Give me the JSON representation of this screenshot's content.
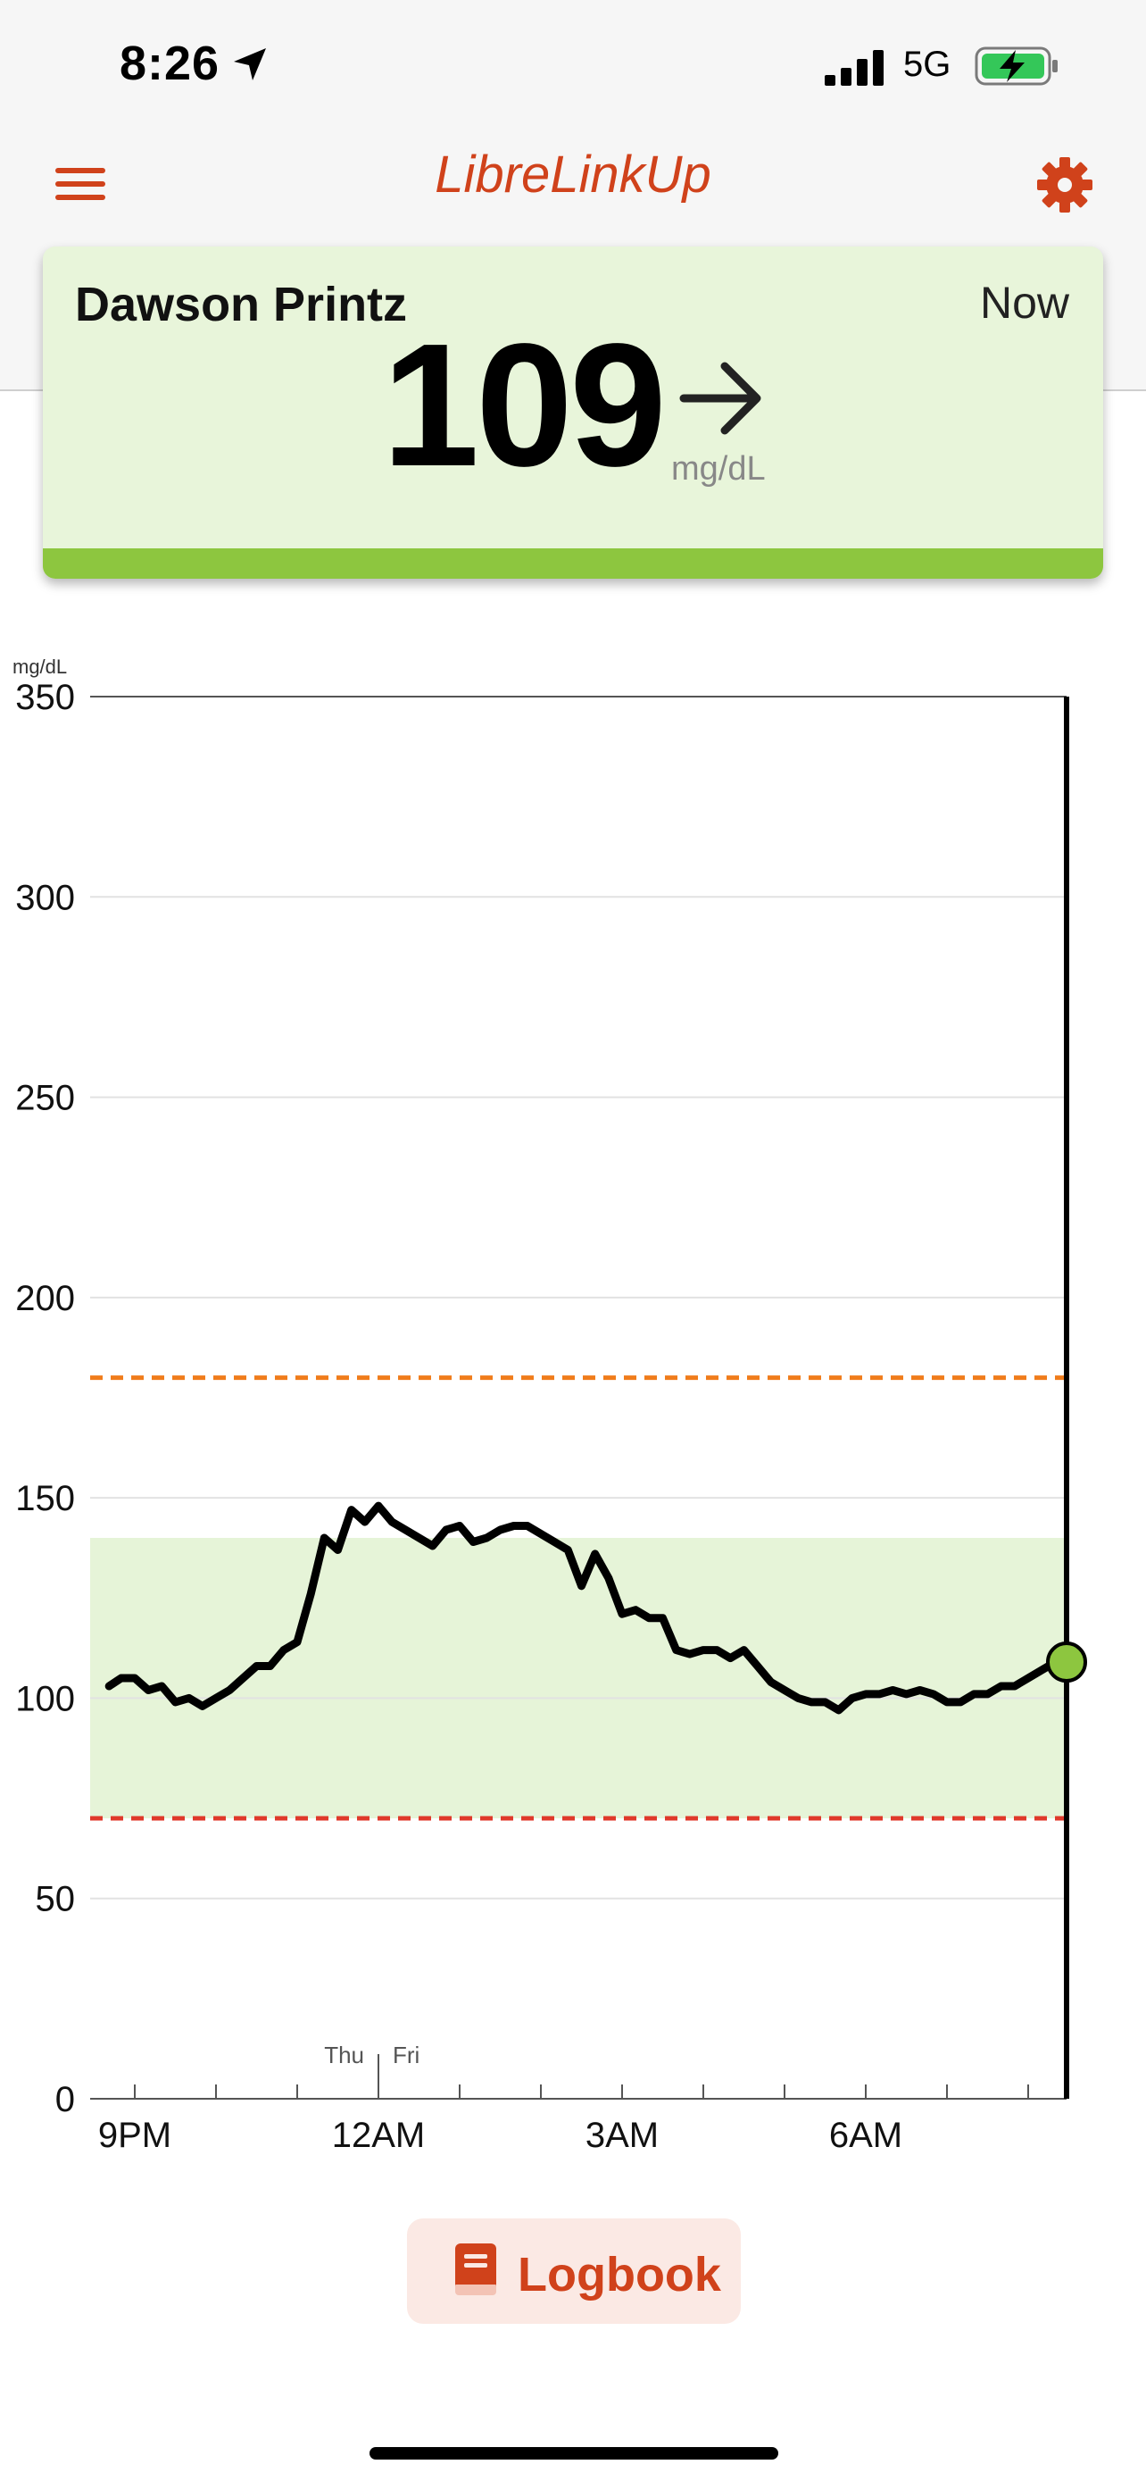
{
  "status_bar": {
    "time": "8:26",
    "network": "5G",
    "icons": [
      "location-arrow-icon",
      "signal-bars-icon",
      "battery-charging-icon"
    ]
  },
  "header": {
    "title": "LibreLinkUp",
    "menu_icon": "hamburger-menu-icon",
    "settings_icon": "gear-icon",
    "accent_color": "#d0421b"
  },
  "reading": {
    "patient_name": "Dawson Printz",
    "time": "Now",
    "value": "109",
    "unit": "mg/dL",
    "trend": "steady",
    "trend_icon": "arrow-right-icon",
    "status_color": "#8dc63f"
  },
  "chart_data": {
    "type": "line",
    "y_unit_label": "mg/dL",
    "ylim": [
      0,
      350
    ],
    "y_ticks": [
      "350",
      "300",
      "250",
      "200",
      "150",
      "100",
      "50",
      "0"
    ],
    "x_tick_labels": [
      "9PM",
      "12AM",
      "3AM",
      "6AM"
    ],
    "day_labels": [
      "Thu",
      "Fri"
    ],
    "target_range": [
      70,
      140
    ],
    "high_threshold": 180,
    "low_threshold": 70,
    "colors": {
      "line": "#000000",
      "target_band": "#e6f4d8",
      "high_line": "#f07c1b",
      "low_line": "#e0392b",
      "current_point": "#8dc63f"
    },
    "series": [
      {
        "x": [
          "8:41PM",
          "8:50PM",
          "9:00PM",
          "9:10PM",
          "9:20PM",
          "9:30PM",
          "9:40PM",
          "9:50PM",
          "10:00PM",
          "10:10PM",
          "10:20PM",
          "10:30PM",
          "10:40PM",
          "10:50PM",
          "11:00PM",
          "11:10PM",
          "11:20PM",
          "11:30PM",
          "11:40PM",
          "11:50PM",
          "12:00AM",
          "12:10AM",
          "12:20AM",
          "12:30AM",
          "12:40AM",
          "12:50AM",
          "1:00AM",
          "1:10AM",
          "1:20AM",
          "1:30AM",
          "1:40AM",
          "1:50AM",
          "2:00AM",
          "2:10AM",
          "2:20AM",
          "2:30AM",
          "2:40AM",
          "2:50AM",
          "3:00AM",
          "3:10AM",
          "3:20AM",
          "3:30AM",
          "3:40AM",
          "3:50AM",
          "4:00AM",
          "4:10AM",
          "4:20AM",
          "4:30AM",
          "4:40AM",
          "4:50AM",
          "5:00AM",
          "5:10AM",
          "5:20AM",
          "5:30AM",
          "5:40AM",
          "5:50AM",
          "6:00AM",
          "6:10AM",
          "6:20AM",
          "6:30AM",
          "6:40AM",
          "6:50AM",
          "7:00AM",
          "7:10AM",
          "7:20AM",
          "7:30AM",
          "7:40AM",
          "7:50AM",
          "8:00AM",
          "8:10AM",
          "8:20AM",
          "8:26AM"
        ],
        "y": [
          103,
          105,
          105,
          102,
          103,
          99,
          100,
          98,
          100,
          102,
          105,
          108,
          108,
          112,
          114,
          126,
          140,
          137,
          147,
          144,
          148,
          144,
          142,
          140,
          138,
          142,
          143,
          139,
          140,
          142,
          143,
          143,
          141,
          139,
          137,
          128,
          136,
          130,
          121,
          122,
          120,
          120,
          112,
          111,
          112,
          112,
          110,
          112,
          108,
          104,
          102,
          100,
          99,
          99,
          97,
          100,
          101,
          101,
          102,
          101,
          102,
          101,
          99,
          99,
          101,
          101,
          103,
          103,
          105,
          107,
          109,
          109
        ]
      }
    ],
    "current_value": 109
  },
  "logbook": {
    "label": "Logbook",
    "icon": "book-icon"
  }
}
